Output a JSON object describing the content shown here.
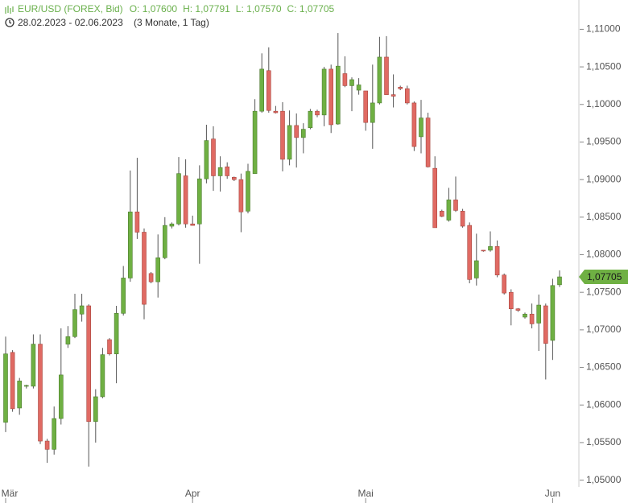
{
  "chart_data": {
    "type": "candlestick",
    "title": "EUR/USD (FOREX, Bid)",
    "ohlc_labels": [
      "O: 1,07600",
      "H: 1,07791",
      "L: 1,07570",
      "C: 1,07705"
    ],
    "date_range": "28.02.2023 - 02.06.2023",
    "period": "(3 Monate, 1 Tag)",
    "categories": [
      "Mär",
      null,
      null,
      null,
      null,
      null,
      null,
      null,
      null,
      null,
      null,
      null,
      null,
      null,
      null,
      null,
      null,
      null,
      null,
      null,
      null,
      null,
      null,
      null,
      null,
      null,
      null,
      "Apr",
      null,
      null,
      null,
      null,
      null,
      null,
      null,
      null,
      null,
      null,
      null,
      null,
      null,
      null,
      null,
      null,
      null,
      null,
      null,
      null,
      null,
      null,
      null,
      null,
      "Mai",
      null,
      null,
      null,
      null,
      null,
      null,
      null,
      null,
      null,
      null,
      null,
      null,
      null,
      null,
      null,
      null,
      null,
      null,
      null,
      null,
      null,
      null,
      null,
      null,
      null,
      null,
      "Jun",
      null
    ],
    "open": [
      1.0577,
      1.067,
      1.0596,
      1.0625,
      1.0625,
      1.0681,
      1.0552,
      1.0541,
      1.0582,
      1.0681,
      1.0691,
      1.0721,
      1.0732,
      1.0578,
      1.0611,
      1.0687,
      1.0668,
      1.0722,
      1.0769,
      1.0857,
      1.083,
      1.0775,
      1.0764,
      1.0796,
      1.0838,
      1.0841,
      1.0905,
      1.0841,
      1.0841,
      1.0901,
      1.0954,
      1.0905,
      1.0917,
      1.0903,
      1.09,
      1.0858,
      1.0908,
      1.0991,
      1.1045,
      1.0991,
      1.0991,
      1.0927,
      1.0972,
      1.0956,
      1.0969,
      1.0991,
      1.0986,
      1.1047,
      1.0974,
      1.1041,
      1.1025,
      1.1019,
      1.1018,
      1.0976,
      1.1002,
      1.1063,
      1.1013,
      1.1023,
      1.1021,
      1.1002,
      1.0957,
      1.0982,
      1.0915,
      1.0858,
      1.0846,
      1.0873,
      1.0858,
      1.0839,
      1.0769,
      1.0806,
      1.0806,
      1.0811,
      1.0773,
      1.075,
      1.0728,
      1.0717,
      1.0721,
      1.0709,
      1.0732,
      1.0686,
      1.076
    ],
    "high": [
      1.0691,
      1.0673,
      1.0636,
      1.0627,
      1.0694,
      1.0694,
      1.0555,
      1.0598,
      1.0702,
      1.0705,
      1.0748,
      1.0748,
      1.0734,
      1.0621,
      1.0676,
      1.0689,
      1.0732,
      1.0785,
      1.0912,
      1.0929,
      1.0835,
      1.0777,
      1.0827,
      1.085,
      1.0843,
      1.093,
      1.0927,
      1.0852,
      1.0919,
      1.0973,
      1.0971,
      1.0931,
      1.0923,
      1.0904,
      1.0908,
      1.0921,
      1.1007,
      1.1068,
      1.1076,
      1.0998,
      1.1003,
      1.0992,
      1.0988,
      1.0975,
      1.0994,
      1.0993,
      1.105,
      1.1053,
      1.1095,
      1.1064,
      1.1036,
      1.1035,
      1.1018,
      1.1053,
      1.109,
      1.1091,
      1.104,
      1.1025,
      1.1025,
      1.1004,
      1.1006,
      1.0989,
      1.0931,
      1.086,
      1.0889,
      1.0904,
      1.0861,
      1.0843,
      1.0828,
      1.0806,
      1.0831,
      1.0819,
      1.0775,
      1.0754,
      1.0729,
      1.0723,
      1.0735,
      1.0747,
      1.0735,
      1.0768,
      1.07791
    ],
    "low": [
      1.0564,
      1.0591,
      1.0587,
      1.0622,
      1.0622,
      1.0548,
      1.0523,
      1.0534,
      1.0574,
      1.0676,
      1.0689,
      1.0711,
      1.0518,
      1.055,
      1.0609,
      1.0666,
      1.0629,
      1.0719,
      1.0764,
      1.0821,
      1.0714,
      1.0762,
      1.0743,
      1.0794,
      1.0835,
      1.0839,
      1.0836,
      1.0839,
      1.0788,
      1.0895,
      1.0885,
      1.0884,
      1.0901,
      1.0898,
      1.083,
      1.0855,
      1.0908,
      1.0989,
      1.0989,
      1.0988,
      1.0911,
      1.0919,
      1.0916,
      1.0935,
      1.0967,
      1.0983,
      1.0971,
      1.0962,
      1.0973,
      1.1023,
      1.0991,
      1.1013,
      1.0965,
      1.0941,
      1.1,
      1.1013,
      1.0996,
      1.1019,
      1.1,
      1.0938,
      1.0935,
      1.0916,
      1.0836,
      1.085,
      1.0844,
      1.0857,
      1.0836,
      1.0762,
      1.0759,
      1.0804,
      1.0804,
      1.077,
      1.0747,
      1.0706,
      1.0724,
      1.0715,
      1.0702,
      1.0672,
      1.0634,
      1.066,
      1.0757
    ],
    "close": [
      1.0668,
      1.0595,
      1.0632,
      1.0626,
      1.0681,
      1.0552,
      1.0541,
      1.0582,
      1.064,
      1.0691,
      1.0727,
      1.0732,
      1.0578,
      1.0611,
      1.0667,
      1.0668,
      1.0722,
      1.0769,
      1.0857,
      1.083,
      1.0734,
      1.0764,
      1.0796,
      1.0839,
      1.0841,
      1.0908,
      1.0841,
      1.0839,
      1.0901,
      1.0952,
      1.0905,
      1.0916,
      1.0905,
      1.09,
      1.0857,
      1.0911,
      1.0991,
      1.1047,
      1.0992,
      1.0989,
      1.0927,
      1.0972,
      1.0956,
      1.0967,
      1.0991,
      1.0986,
      1.1047,
      1.0973,
      1.1051,
      1.1025,
      1.1033,
      1.1026,
      1.0976,
      1.1002,
      1.1063,
      1.1013,
      1.1011,
      1.1021,
      1.1002,
      1.0944,
      1.0982,
      1.0917,
      1.0836,
      1.0851,
      1.0873,
      1.0859,
      1.0838,
      1.0767,
      1.0792,
      1.0805,
      1.0811,
      1.0773,
      1.0749,
      1.0728,
      1.0726,
      1.0721,
      1.0708,
      1.0733,
      1.0682,
      1.0759,
      1.07705
    ],
    "up_color": "#6fb043",
    "down_color": "#e06a63",
    "last_price": {
      "value": 1.07705,
      "label": "1,07705"
    },
    "ylim": [
      1.0491,
      1.1139
    ],
    "yticks": [
      {
        "value": 1.05,
        "label": "1,05000"
      },
      {
        "value": 1.055,
        "label": "1,05500"
      },
      {
        "value": 1.06,
        "label": "1,06000"
      },
      {
        "value": 1.065,
        "label": "1,06500"
      },
      {
        "value": 1.07,
        "label": "1,07000"
      },
      {
        "value": 1.075,
        "label": "1,07500"
      },
      {
        "value": 1.08,
        "label": "1,08000"
      },
      {
        "value": 1.085,
        "label": "1,08500"
      },
      {
        "value": 1.09,
        "label": "1,09000"
      },
      {
        "value": 1.095,
        "label": "1,09500"
      },
      {
        "value": 1.1,
        "label": "1,10000"
      },
      {
        "value": 1.105,
        "label": "1,10500"
      },
      {
        "value": 1.11,
        "label": "1,11000"
      }
    ]
  }
}
